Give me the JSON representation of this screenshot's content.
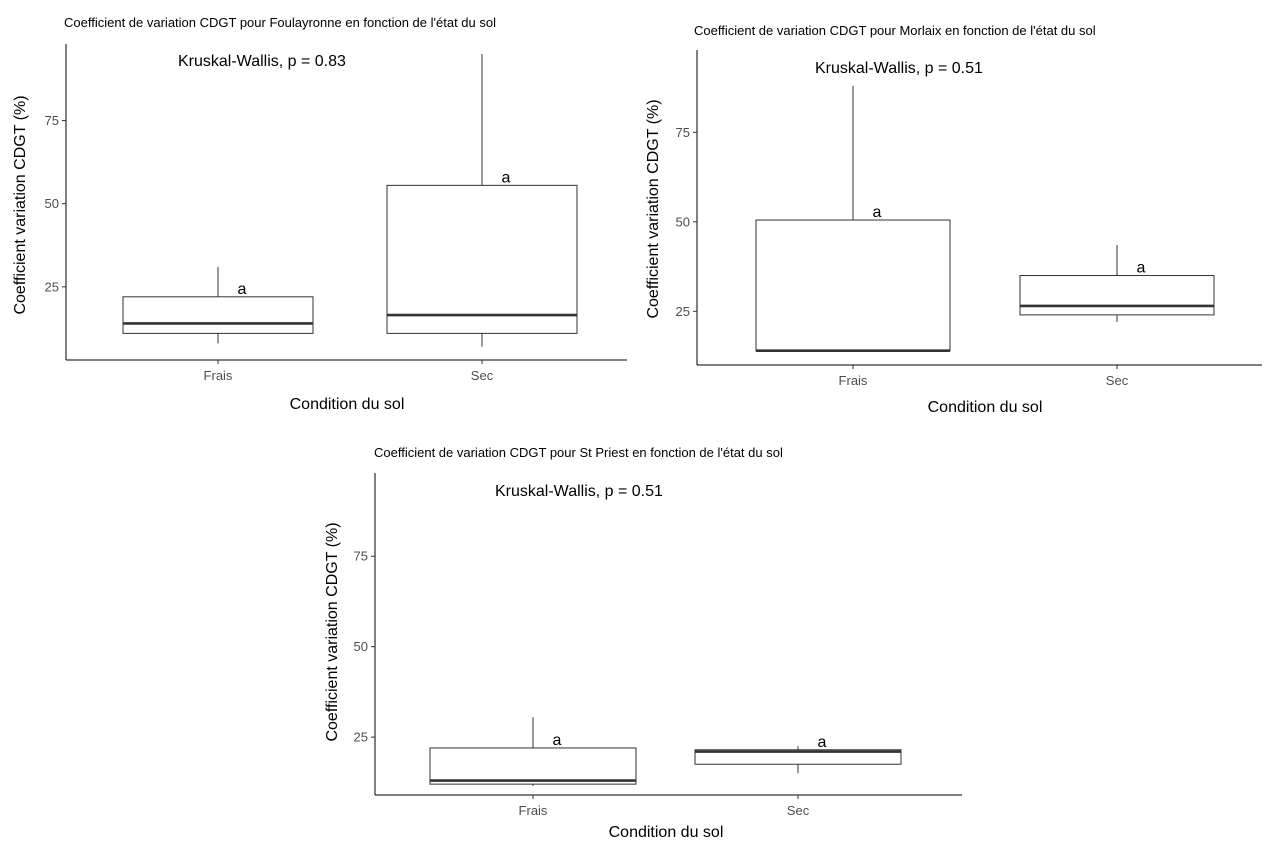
{
  "chart_data": [
    {
      "type": "boxplot",
      "title": "Coefficient de variation CDGT pour Foulayronne en fonction de l'état du sol",
      "xlabel": "Condition du sol",
      "ylabel": "Coefficient variation CDGT (%)",
      "ylim": [
        3,
        98
      ],
      "yticks": [
        25,
        50,
        75
      ],
      "categories": [
        "Frais",
        "Sec"
      ],
      "annotation": "Kruskal-Wallis, p = 0.83",
      "boxes": [
        {
          "category": "Frais",
          "min": 8,
          "q1": 11,
          "median": 14,
          "q3": 22,
          "max": 31,
          "letter": "a"
        },
        {
          "category": "Sec",
          "min": 7,
          "q1": 11,
          "median": 16.5,
          "q3": 55.5,
          "max": 95,
          "letter": "a"
        }
      ],
      "grid": false
    },
    {
      "type": "boxplot",
      "title": "Coefficient de variation CDGT pour Morlaix en fonction de l'état du sol",
      "xlabel": "Condition du sol",
      "ylabel": "Coefficient variation CDGT (%)",
      "ylim": [
        10,
        98
      ],
      "yticks": [
        25,
        50,
        75
      ],
      "categories": [
        "Frais",
        "Sec"
      ],
      "annotation": "Kruskal-Wallis, p = 0.51",
      "boxes": [
        {
          "category": "Frais",
          "min": 14,
          "q1": 14,
          "median": 14,
          "q3": 50.5,
          "max": 88,
          "letter": "a"
        },
        {
          "category": "Sec",
          "min": 22,
          "q1": 24,
          "median": 26.5,
          "q3": 35,
          "max": 43.5,
          "letter": "a"
        }
      ],
      "grid": false
    },
    {
      "type": "boxplot",
      "title": "Coefficient de variation CDGT pour St Priest en fonction de l'état du sol",
      "xlabel": "Condition du sol",
      "ylabel": "Coefficient variation CDGT (%)",
      "ylim": [
        9,
        98
      ],
      "yticks": [
        25,
        50,
        75
      ],
      "categories": [
        "Frais",
        "Sec"
      ],
      "annotation": "Kruskal-Wallis, p = 0.51",
      "boxes": [
        {
          "category": "Frais",
          "min": 11.5,
          "q1": 12,
          "median": 13,
          "q3": 22,
          "max": 30.5,
          "letter": "a"
        },
        {
          "category": "Sec",
          "min": 15,
          "q1": 17.5,
          "median": 21,
          "q3": 21.5,
          "max": 22.5,
          "letter": "a"
        }
      ],
      "grid": false
    }
  ]
}
